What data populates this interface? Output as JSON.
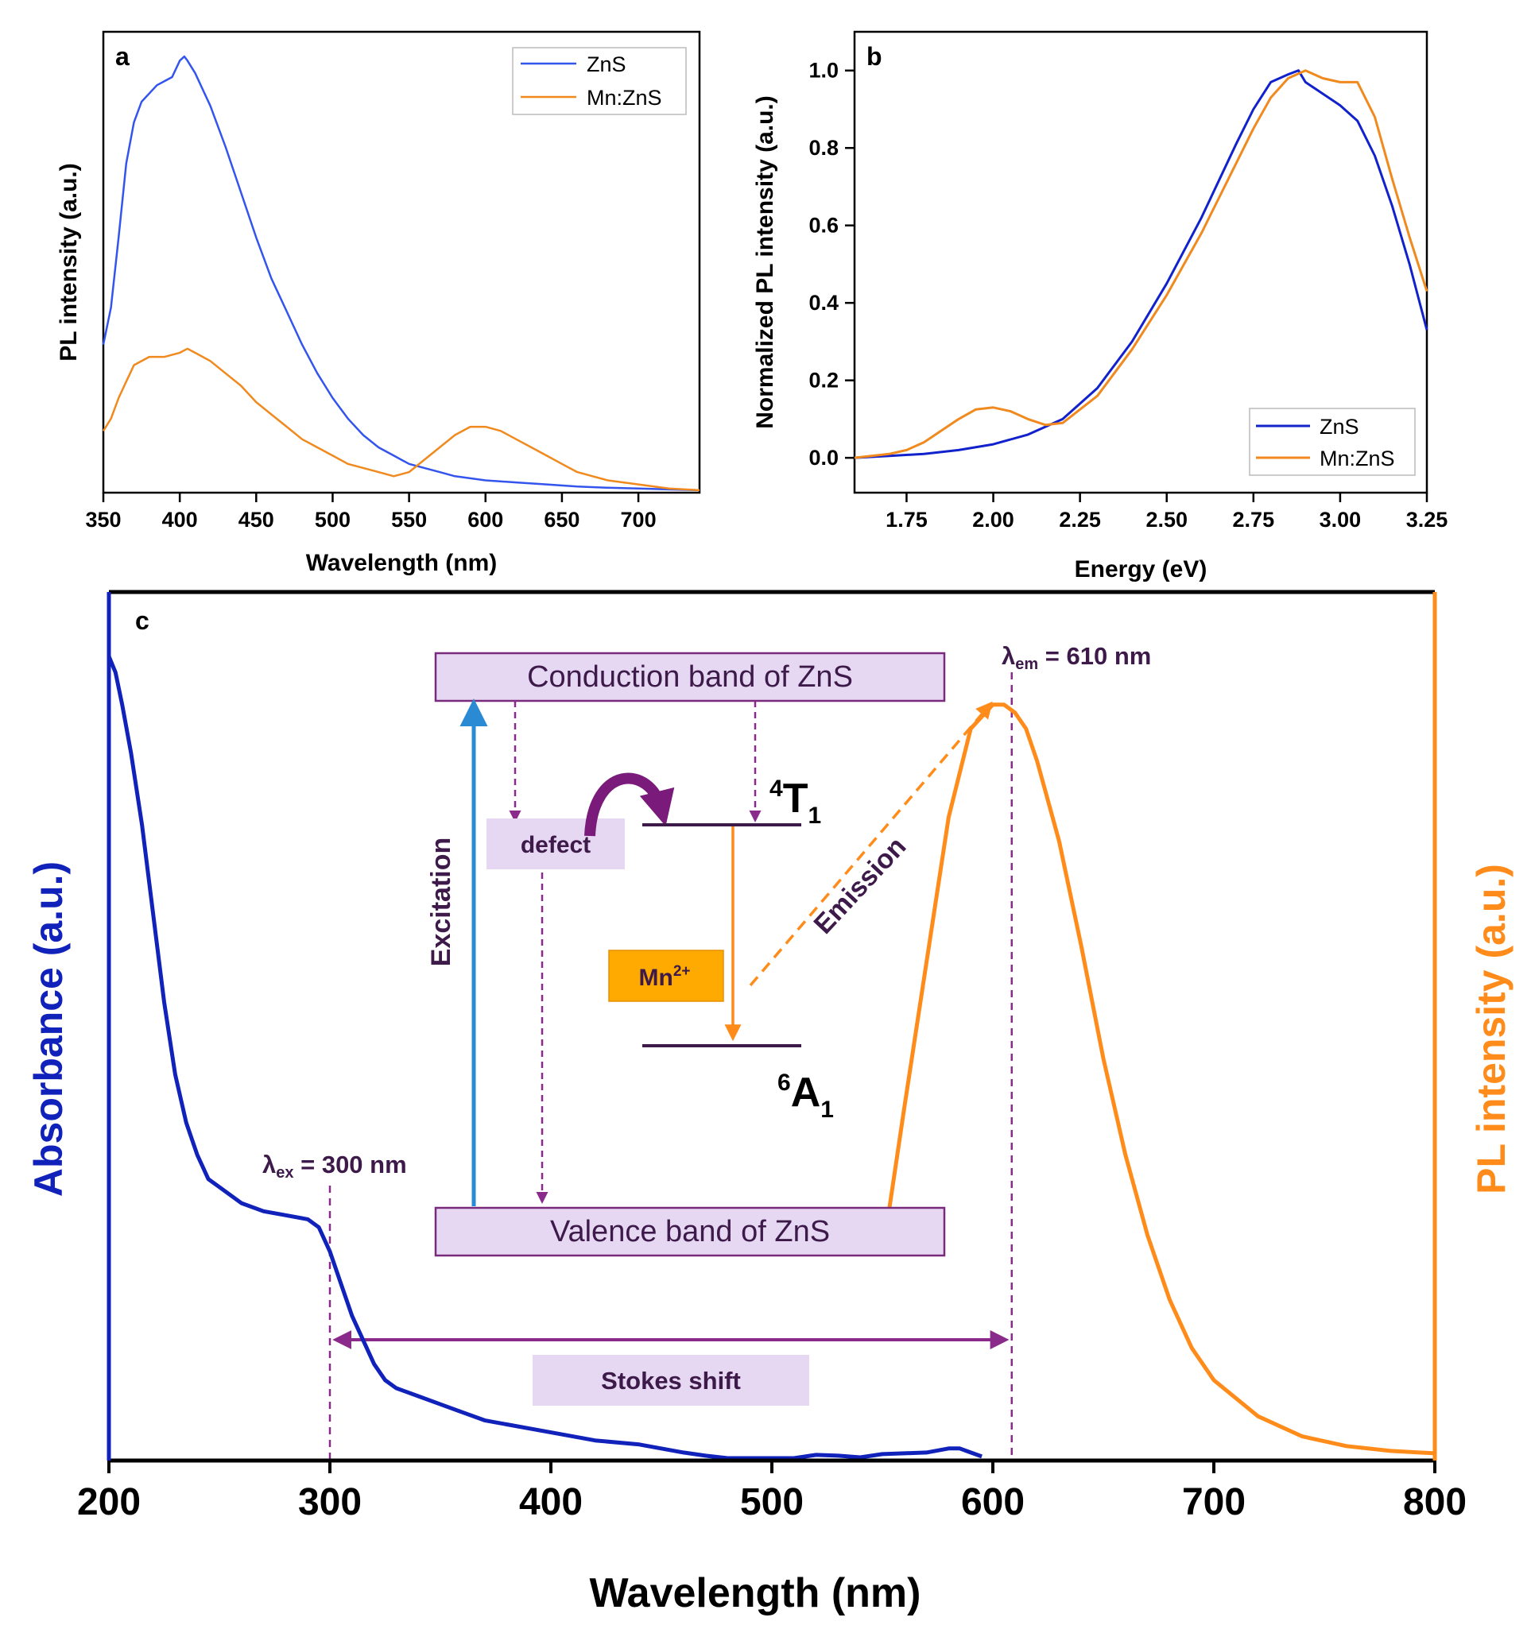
{
  "chart_data": [
    {
      "panel": "a",
      "type": "line",
      "xlabel": "Wavelength (nm)",
      "ylabel": "PL intensity (a.u.)",
      "xlim": [
        350,
        740
      ],
      "ylim": [
        0,
        1.12
      ],
      "xticks": [
        350,
        400,
        450,
        500,
        550,
        600,
        650,
        700
      ],
      "legend": "top-right",
      "series": [
        {
          "name": "ZnS",
          "color": "#3355ee",
          "x": [
            350,
            355,
            360,
            365,
            370,
            375,
            380,
            385,
            390,
            395,
            400,
            403,
            405,
            410,
            415,
            420,
            430,
            440,
            450,
            460,
            470,
            480,
            490,
            500,
            510,
            520,
            530,
            540,
            550,
            560,
            570,
            580,
            600,
            620,
            640,
            660,
            680,
            700,
            720,
            740
          ],
          "y": [
            0.36,
            0.45,
            0.62,
            0.8,
            0.9,
            0.95,
            0.97,
            0.99,
            1.0,
            1.01,
            1.05,
            1.06,
            1.05,
            1.02,
            0.98,
            0.94,
            0.84,
            0.73,
            0.62,
            0.52,
            0.44,
            0.36,
            0.29,
            0.23,
            0.18,
            0.14,
            0.11,
            0.09,
            0.07,
            0.06,
            0.05,
            0.04,
            0.03,
            0.025,
            0.02,
            0.015,
            0.012,
            0.01,
            0.008,
            0.006
          ]
        },
        {
          "name": "Mn:ZnS",
          "color": "#f08a1e",
          "x": [
            350,
            355,
            360,
            365,
            370,
            380,
            390,
            400,
            405,
            410,
            420,
            430,
            440,
            450,
            460,
            470,
            480,
            490,
            500,
            510,
            520,
            530,
            540,
            550,
            560,
            570,
            580,
            590,
            600,
            610,
            620,
            630,
            640,
            650,
            660,
            680,
            700,
            720,
            740
          ],
          "y": [
            0.15,
            0.18,
            0.23,
            0.27,
            0.31,
            0.33,
            0.33,
            0.34,
            0.35,
            0.34,
            0.32,
            0.29,
            0.26,
            0.22,
            0.19,
            0.16,
            0.13,
            0.11,
            0.09,
            0.07,
            0.06,
            0.05,
            0.04,
            0.05,
            0.08,
            0.11,
            0.14,
            0.16,
            0.16,
            0.15,
            0.13,
            0.11,
            0.09,
            0.07,
            0.05,
            0.03,
            0.02,
            0.01,
            0.006
          ]
        }
      ]
    },
    {
      "panel": "b",
      "type": "line",
      "xlabel": "Energy (eV)",
      "ylabel": "Normalized PL intensity (a.u.)",
      "xlim": [
        1.6,
        3.25
      ],
      "ylim": [
        -0.09,
        1.1
      ],
      "xticks": [
        1.75,
        2.0,
        2.25,
        2.5,
        2.75,
        3.0,
        3.25
      ],
      "yticks": [
        0.0,
        0.2,
        0.4,
        0.6,
        0.8,
        1.0
      ],
      "legend": "bottom-right",
      "series": [
        {
          "name": "ZnS",
          "color": "#1122cc",
          "x": [
            1.6,
            1.7,
            1.8,
            1.9,
            2.0,
            2.1,
            2.2,
            2.3,
            2.4,
            2.5,
            2.6,
            2.7,
            2.75,
            2.8,
            2.85,
            2.88,
            2.9,
            2.95,
            3.0,
            3.05,
            3.1,
            3.15,
            3.2,
            3.25
          ],
          "y": [
            0.0,
            0.005,
            0.01,
            0.02,
            0.035,
            0.06,
            0.1,
            0.18,
            0.3,
            0.45,
            0.62,
            0.81,
            0.9,
            0.97,
            0.99,
            1.0,
            0.97,
            0.94,
            0.91,
            0.87,
            0.78,
            0.65,
            0.5,
            0.33
          ]
        },
        {
          "name": "Mn:ZnS",
          "color": "#f08a1e",
          "x": [
            1.6,
            1.7,
            1.75,
            1.8,
            1.85,
            1.9,
            1.95,
            2.0,
            2.05,
            2.1,
            2.15,
            2.2,
            2.3,
            2.4,
            2.5,
            2.6,
            2.7,
            2.75,
            2.8,
            2.85,
            2.9,
            2.95,
            3.0,
            3.05,
            3.1,
            3.15,
            3.2,
            3.25
          ],
          "y": [
            0.0,
            0.01,
            0.02,
            0.04,
            0.07,
            0.1,
            0.125,
            0.13,
            0.12,
            0.1,
            0.085,
            0.09,
            0.16,
            0.28,
            0.42,
            0.58,
            0.76,
            0.85,
            0.93,
            0.98,
            1.0,
            0.98,
            0.97,
            0.97,
            0.88,
            0.72,
            0.57,
            0.43
          ]
        }
      ]
    },
    {
      "panel": "c",
      "type": "line",
      "xlabel": "Wavelength (nm)",
      "ylabel_left": "Absorbance (a.u.)",
      "ylabel_right": "PL intensity (a.u.)",
      "xlim": [
        200,
        800
      ],
      "ylim": [
        0,
        1
      ],
      "xticks": [
        200,
        300,
        400,
        500,
        600,
        700,
        800
      ],
      "series": [
        {
          "name": "Absorbance",
          "color": "#1122bb",
          "x": [
            200,
            203,
            206,
            210,
            215,
            220,
            225,
            230,
            235,
            240,
            245,
            250,
            260,
            270,
            280,
            290,
            295,
            300,
            305,
            310,
            315,
            320,
            325,
            330,
            340,
            350,
            360,
            370,
            380,
            400,
            420,
            440,
            460,
            470,
            480,
            490,
            500,
            510,
            520,
            530,
            540,
            550,
            560,
            570,
            580,
            585,
            590,
            595
          ],
          "y": [
            1.0,
            0.98,
            0.94,
            0.88,
            0.79,
            0.68,
            0.57,
            0.48,
            0.42,
            0.38,
            0.35,
            0.34,
            0.32,
            0.31,
            0.305,
            0.3,
            0.29,
            0.26,
            0.22,
            0.18,
            0.15,
            0.12,
            0.1,
            0.09,
            0.08,
            0.07,
            0.06,
            0.05,
            0.045,
            0.035,
            0.025,
            0.02,
            0.01,
            0.006,
            0.003,
            0.003,
            0.003,
            0.003,
            0.007,
            0.006,
            0.004,
            0.008,
            0.009,
            0.01,
            0.015,
            0.015,
            0.01,
            0.005
          ]
        },
        {
          "name": "PL intensity",
          "color": "#ff8c1a",
          "x": [
            553,
            560,
            570,
            580,
            590,
            600,
            605,
            610,
            615,
            620,
            630,
            640,
            650,
            660,
            670,
            680,
            690,
            700,
            720,
            740,
            760,
            780,
            800
          ],
          "y": [
            0.31,
            0.44,
            0.62,
            0.8,
            0.91,
            0.94,
            0.94,
            0.93,
            0.91,
            0.87,
            0.77,
            0.64,
            0.5,
            0.38,
            0.28,
            0.2,
            0.14,
            0.1,
            0.055,
            0.03,
            0.018,
            0.012,
            0.009
          ]
        }
      ],
      "annotations": {
        "ex_label": "λ",
        "ex_sub": "ex",
        "ex_value": " = 300 nm",
        "ex_nm": 300,
        "em_label": "λ",
        "em_sub": "em",
        "em_value": " = 610 nm",
        "em_nm": 610,
        "stokes": "Stokes shift"
      },
      "diagram": {
        "conduction_band": "Conduction band of ZnS",
        "valence_band": "Valence band of ZnS",
        "defect": "defect",
        "mn_ion": "Mn",
        "mn_charge": "2+",
        "excitation": "Excitation",
        "emission": "Emission",
        "upper_level_sup": "4",
        "upper_level_main": "T",
        "upper_level_sub": "1",
        "lower_level_sup": "6",
        "lower_level_main": "A",
        "lower_level_sub": "1"
      }
    }
  ],
  "panel_labels": {
    "a": "a",
    "b": "b",
    "c": "c"
  },
  "colors": {
    "axis": "#000000",
    "diagram_box": "#e6d8f2",
    "diagram_border": "#7a2a7a",
    "dark_purple": "#3d1a4a",
    "mn_box": "#ffaa00",
    "excitation_arrow": "#2a8ad4"
  }
}
